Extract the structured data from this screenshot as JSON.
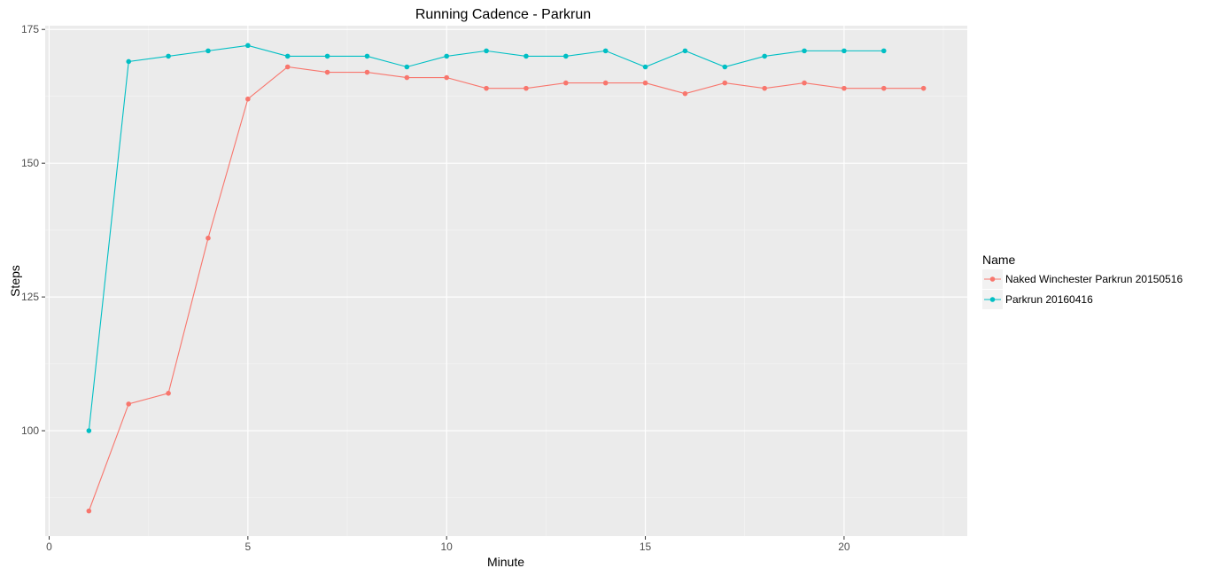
{
  "chart_data": {
    "type": "line",
    "title": "Running Cadence - Parkrun",
    "xlabel": "Minute",
    "ylabel": "Steps",
    "xlim": [
      -0.1,
      23.1
    ],
    "ylim": [
      80.3,
      175.7
    ],
    "x_ticks": [
      0,
      5,
      10,
      15,
      20
    ],
    "x_tick_labels": [
      "0",
      "5",
      "10",
      "15",
      "20"
    ],
    "y_ticks": [
      100,
      125,
      150,
      175
    ],
    "y_tick_labels": [
      "100",
      "125",
      "150",
      "175"
    ],
    "x_minor_ticks": [
      2.5,
      7.5,
      12.5,
      17.5,
      22.5
    ],
    "y_minor_ticks": [
      87.5,
      112.5,
      137.5,
      162.5
    ],
    "grid": true,
    "legend": {
      "title": "Name",
      "position": "right"
    },
    "series": [
      {
        "name": "Naked Winchester Parkrun 20150516",
        "color": "#F8766D",
        "x": [
          1,
          2,
          3,
          4,
          5,
          6,
          7,
          8,
          9,
          10,
          11,
          12,
          13,
          14,
          15,
          16,
          17,
          18,
          19,
          20,
          21,
          22
        ],
        "values": [
          85,
          105,
          107,
          136,
          162,
          168,
          167,
          167,
          166,
          166,
          164,
          164,
          165,
          165,
          165,
          163,
          165,
          164,
          165,
          164,
          164,
          164
        ]
      },
      {
        "name": "Parkrun 20160416",
        "color": "#00BFC4",
        "x": [
          1,
          2,
          3,
          4,
          5,
          6,
          7,
          8,
          9,
          10,
          11,
          12,
          13,
          14,
          15,
          16,
          17,
          18,
          19,
          20,
          21
        ],
        "values": [
          100,
          169,
          170,
          171,
          172,
          170,
          170,
          170,
          168,
          170,
          171,
          170,
          170,
          171,
          168,
          171,
          168,
          170,
          171,
          171,
          171
        ]
      }
    ]
  }
}
